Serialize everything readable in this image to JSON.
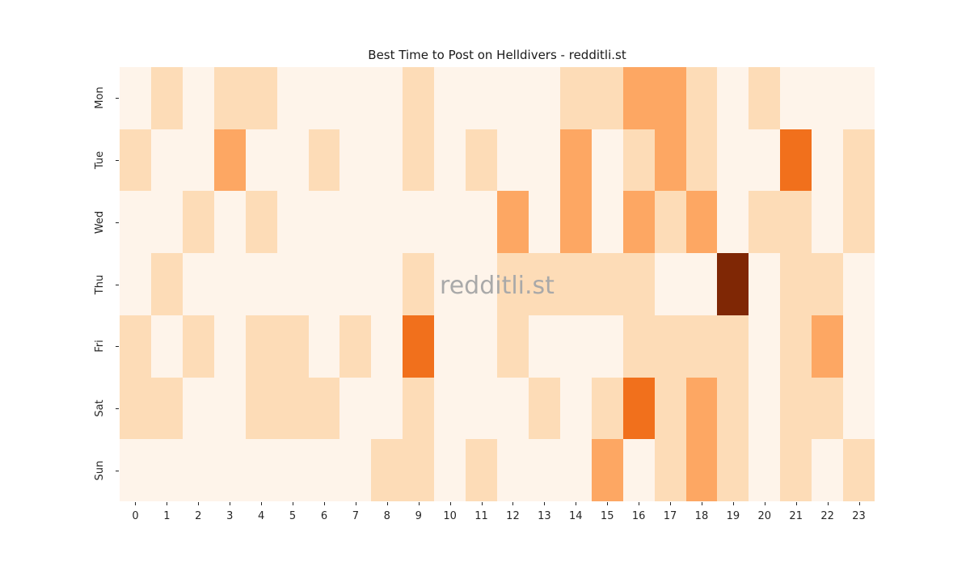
{
  "chart_data": {
    "type": "heatmap",
    "title": "Best Time to Post on Helldivers - redditli.st",
    "watermark": "redditli.st",
    "xlabel": "",
    "ylabel": "",
    "x_labels": [
      "0",
      "1",
      "2",
      "3",
      "4",
      "5",
      "6",
      "7",
      "8",
      "9",
      "10",
      "11",
      "12",
      "13",
      "14",
      "15",
      "16",
      "17",
      "18",
      "19",
      "20",
      "21",
      "22",
      "23"
    ],
    "y_labels": [
      "Mon",
      "Tue",
      "Wed",
      "Thu",
      "Fri",
      "Sat",
      "Sun"
    ],
    "colormap": "Oranges",
    "legend": "none",
    "grid": "off",
    "level_meaning": "relative posting activity intensity, 0 = lowest, 4 = highest (single max cell Thu 19:00)",
    "palette": [
      "#fef4ea",
      "#fddcb7",
      "#fda763",
      "#f1701c",
      "#7f2705"
    ],
    "levels": [
      [
        0,
        1,
        0,
        1,
        1,
        0,
        0,
        0,
        0,
        1,
        0,
        0,
        0,
        0,
        1,
        1,
        2,
        2,
        1,
        0,
        1,
        0,
        0,
        0
      ],
      [
        1,
        0,
        0,
        2,
        0,
        0,
        1,
        0,
        0,
        1,
        0,
        1,
        0,
        0,
        2,
        0,
        1,
        2,
        1,
        0,
        0,
        3,
        0,
        1
      ],
      [
        0,
        0,
        1,
        0,
        1,
        0,
        0,
        0,
        0,
        0,
        0,
        0,
        2,
        0,
        2,
        0,
        2,
        1,
        2,
        0,
        1,
        1,
        0,
        1
      ],
      [
        0,
        1,
        0,
        0,
        0,
        0,
        0,
        0,
        0,
        1,
        0,
        0,
        1,
        1,
        1,
        1,
        1,
        0,
        0,
        4,
        0,
        1,
        1,
        0
      ],
      [
        1,
        0,
        1,
        0,
        1,
        1,
        0,
        1,
        0,
        3,
        0,
        0,
        1,
        0,
        0,
        0,
        1,
        1,
        1,
        1,
        0,
        1,
        2,
        0
      ],
      [
        1,
        1,
        0,
        0,
        1,
        1,
        1,
        0,
        0,
        1,
        0,
        0,
        0,
        1,
        0,
        1,
        3,
        1,
        2,
        1,
        0,
        1,
        1,
        0
      ],
      [
        0,
        0,
        0,
        0,
        0,
        0,
        0,
        0,
        1,
        1,
        0,
        1,
        0,
        0,
        0,
        2,
        0,
        1,
        2,
        1,
        0,
        1,
        0,
        1
      ]
    ]
  }
}
